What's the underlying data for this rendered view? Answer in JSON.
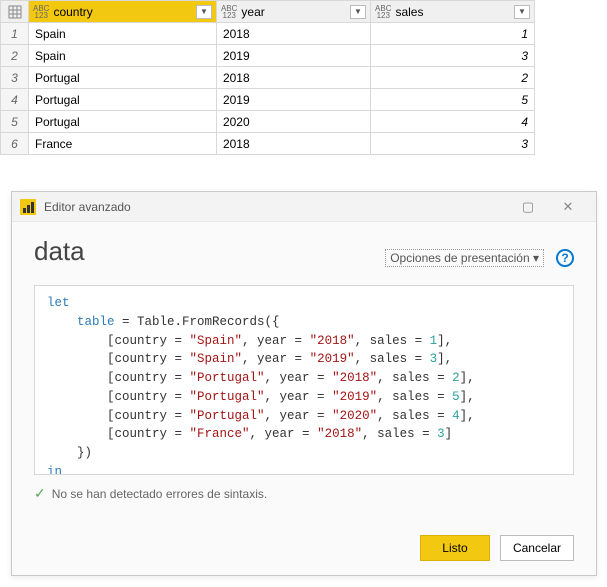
{
  "table": {
    "columns": [
      {
        "name": "country",
        "type_top": "ABC",
        "type_bot": "123",
        "active": true
      },
      {
        "name": "year",
        "type_top": "ABC",
        "type_bot": "123",
        "active": false
      },
      {
        "name": "sales",
        "type_top": "ABC",
        "type_bot": "123",
        "active": false
      }
    ],
    "rows": [
      {
        "n": "1",
        "country": "Spain",
        "year": "2018",
        "sales": "1"
      },
      {
        "n": "2",
        "country": "Spain",
        "year": "2019",
        "sales": "3"
      },
      {
        "n": "3",
        "country": "Portugal",
        "year": "2018",
        "sales": "2"
      },
      {
        "n": "4",
        "country": "Portugal",
        "year": "2019",
        "sales": "5"
      },
      {
        "n": "5",
        "country": "Portugal",
        "year": "2020",
        "sales": "4"
      },
      {
        "n": "6",
        "country": "France",
        "year": "2018",
        "sales": "3"
      }
    ]
  },
  "dialog": {
    "window_title": "Editor avanzado",
    "heading": "data",
    "options_label": "Opciones de presentación ▾",
    "help_glyph": "?",
    "status_text": "No se han detectado errores de sintaxis.",
    "buttons": {
      "ok": "Listo",
      "cancel": "Cancelar"
    },
    "code": {
      "let": "let",
      "in": "in",
      "tableVar": "table",
      "fn": "Table.FromRecords",
      "field_country": "country",
      "field_year": "year",
      "field_sales": "sales",
      "records": [
        {
          "country": "\"Spain\"",
          "year": "\"2018\"",
          "sales": "1"
        },
        {
          "country": "\"Spain\"",
          "year": "\"2019\"",
          "sales": "3"
        },
        {
          "country": "\"Portugal\"",
          "year": "\"2018\"",
          "sales": "2"
        },
        {
          "country": "\"Portugal\"",
          "year": "\"2019\"",
          "sales": "5"
        },
        {
          "country": "\"Portugal\"",
          "year": "\"2020\"",
          "sales": "4"
        },
        {
          "country": "\"France\"",
          "year": "\"2018\"",
          "sales": "3"
        }
      ]
    }
  },
  "colors": {
    "accent": "#f2c811",
    "border": "#d8d8d8",
    "keyword": "#2b7bb9",
    "string": "#a31515",
    "number": "#2aa198"
  }
}
